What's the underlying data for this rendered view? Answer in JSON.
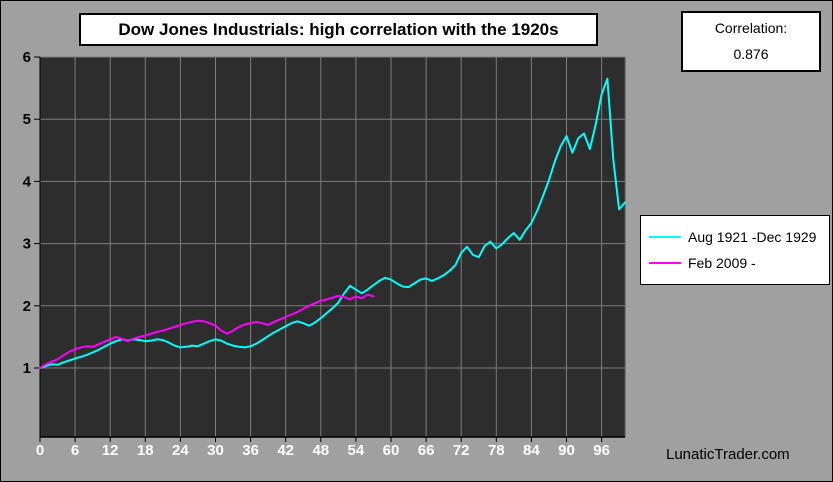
{
  "page": {
    "watermark": "LunaticTrader.com",
    "background_color": "#a0a0a0"
  },
  "title_box": {
    "text": "Dow Jones Industrials: high correlation with the 1920s"
  },
  "correlation_box": {
    "label": "Correlation:",
    "value": "0.876"
  },
  "chart_data": {
    "type": "line",
    "title": "Dow Jones Industrials: high correlation with the 1920s",
    "xlabel": "",
    "ylabel": "",
    "x_unit": "months since start of each period",
    "xlim": [
      0,
      100
    ],
    "ylim": [
      0,
      6
    ],
    "x_ticks": [
      0,
      6,
      12,
      18,
      24,
      30,
      36,
      42,
      48,
      54,
      60,
      66,
      72,
      78,
      84,
      90,
      96
    ],
    "y_ticks": [
      1,
      2,
      3,
      4,
      5,
      6
    ],
    "grid": true,
    "legend_position": "right",
    "plot_background": "#2d2d2d",
    "grid_color": "#7d7d7d",
    "x_tick_label_color": "#ffffff",
    "y_tick_label_color": "#000000",
    "annotation": "Correlation: 0.876",
    "series": [
      {
        "name": "Aug 1921 -Dec 1929",
        "color": "#00ffff",
        "x_start": 0,
        "x_step": 1,
        "values": [
          1.0,
          1.03,
          1.06,
          1.05,
          1.09,
          1.12,
          1.15,
          1.18,
          1.21,
          1.25,
          1.29,
          1.34,
          1.39,
          1.43,
          1.46,
          1.44,
          1.46,
          1.45,
          1.43,
          1.44,
          1.46,
          1.45,
          1.41,
          1.36,
          1.33,
          1.34,
          1.36,
          1.35,
          1.39,
          1.43,
          1.46,
          1.44,
          1.39,
          1.36,
          1.34,
          1.33,
          1.35,
          1.39,
          1.45,
          1.51,
          1.57,
          1.62,
          1.67,
          1.72,
          1.75,
          1.72,
          1.68,
          1.73,
          1.8,
          1.88,
          1.96,
          2.05,
          2.2,
          2.32,
          2.26,
          2.2,
          2.26,
          2.33,
          2.4,
          2.45,
          2.42,
          2.36,
          2.31,
          2.3,
          2.36,
          2.42,
          2.44,
          2.4,
          2.44,
          2.49,
          2.56,
          2.65,
          2.85,
          2.95,
          2.82,
          2.78,
          2.96,
          3.03,
          2.92,
          2.99,
          3.09,
          3.17,
          3.06,
          3.21,
          3.33,
          3.53,
          3.77,
          4.02,
          4.32,
          4.56,
          4.73,
          4.46,
          4.69,
          4.77,
          4.52,
          4.92,
          5.4,
          5.65,
          4.35,
          3.55,
          3.66
        ]
      },
      {
        "name": "Feb 2009 -",
        "color": "#ff00ff",
        "x_start": 0,
        "x_step": 1,
        "values": [
          1.0,
          1.06,
          1.1,
          1.14,
          1.2,
          1.26,
          1.3,
          1.33,
          1.35,
          1.34,
          1.38,
          1.42,
          1.46,
          1.5,
          1.47,
          1.43,
          1.47,
          1.5,
          1.52,
          1.55,
          1.58,
          1.6,
          1.63,
          1.66,
          1.69,
          1.72,
          1.74,
          1.76,
          1.75,
          1.72,
          1.68,
          1.6,
          1.55,
          1.6,
          1.66,
          1.7,
          1.72,
          1.74,
          1.72,
          1.69,
          1.74,
          1.78,
          1.82,
          1.86,
          1.9,
          1.95,
          2.0,
          2.04,
          2.08,
          2.1,
          2.13,
          2.16,
          2.14,
          2.1,
          2.15,
          2.12,
          2.18,
          2.15
        ]
      }
    ]
  }
}
